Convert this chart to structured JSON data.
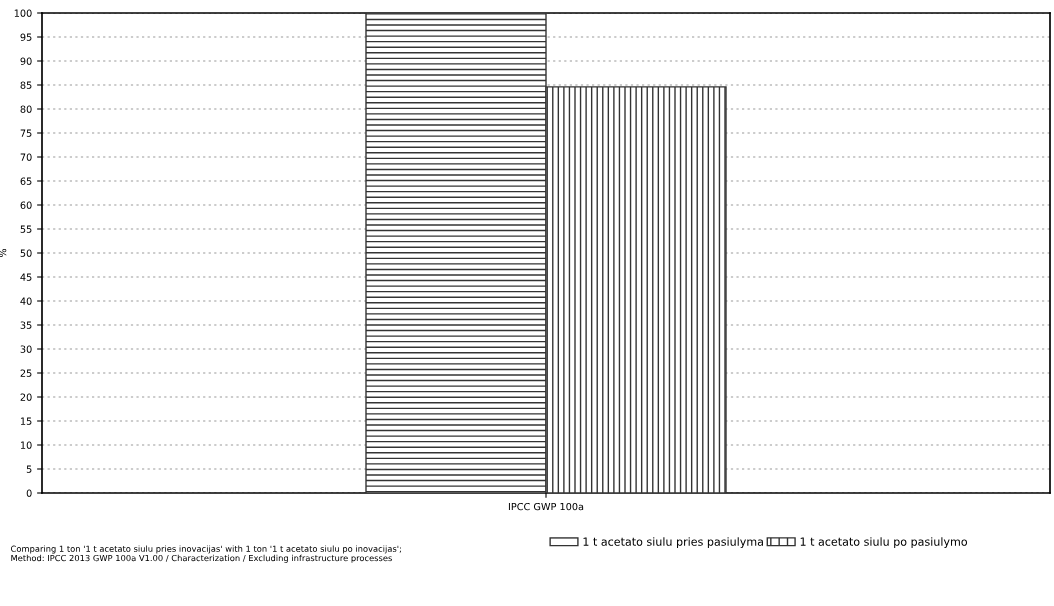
{
  "chart_data": {
    "type": "bar",
    "ylabel": "%",
    "categories": [
      "IPCC GWP 100a"
    ],
    "series": [
      {
        "name": "1 t acetato siulu pries pasiulyma",
        "color": "#333333",
        "values": [
          100
        ]
      },
      {
        "name": "1 t acetato siulu po pasiulymo",
        "color": "#333333",
        "values": [
          84.6
        ]
      }
    ],
    "ylim": [
      0,
      100
    ],
    "yticks": [
      0,
      5,
      10,
      15,
      20,
      25,
      30,
      35,
      40,
      45,
      50,
      55,
      60,
      65,
      70,
      75,
      80,
      85,
      90,
      95,
      100
    ],
    "grid": "y",
    "legend": "bottom",
    "annotations": [
      "Comparing 1 ton '1 t acetato siulu pries inovacijas' with 1 ton '1 t acetato siulu po inovacijas';\nMethod: IPCC 2013 GWP 100a V1.00 / Characterization / Excluding infrastructure processes"
    ]
  }
}
